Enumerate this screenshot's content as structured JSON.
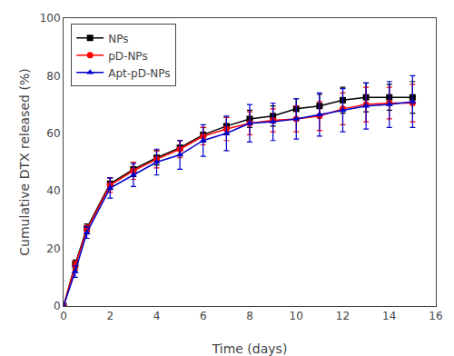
{
  "chart_data": {
    "type": "line",
    "xlabel": "Time (days)",
    "ylabel": "Cumulative DTX released (%)",
    "x": [
      0,
      0.5,
      1,
      2,
      3,
      4,
      5,
      6,
      7,
      8,
      9,
      10,
      11,
      12,
      13,
      14,
      15
    ],
    "series": [
      {
        "name": "NPs",
        "color": "#000000",
        "marker": "square",
        "values": [
          0,
          14.5,
          27.0,
          42.5,
          47.5,
          51.5,
          55.0,
          59.5,
          62.5,
          65.0,
          66.0,
          68.5,
          69.5,
          71.5,
          72.5,
          72.5,
          72.5
        ],
        "errors": [
          0,
          1.5,
          1.5,
          2.0,
          2.5,
          2.5,
          2.5,
          2.5,
          3.0,
          3.0,
          3.5,
          3.5,
          4.0,
          4.5,
          5.0,
          4.5,
          5.5
        ]
      },
      {
        "name": "pD-NPs",
        "color": "#ff0000",
        "marker": "circle",
        "values": [
          0,
          14.0,
          26.5,
          42.0,
          47.0,
          51.0,
          54.5,
          59.0,
          61.5,
          63.5,
          64.5,
          65.0,
          66.0,
          68.5,
          70.0,
          70.5,
          70.5
        ],
        "errors": [
          0,
          1.5,
          1.5,
          2.5,
          3.0,
          3.0,
          3.0,
          3.0,
          4.0,
          4.0,
          4.0,
          4.5,
          5.0,
          5.5,
          6.0,
          5.5,
          6.5
        ]
      },
      {
        "name": "Apt-pD-NPs",
        "color": "#0000cc",
        "marker": "triangle-up",
        "values": [
          0,
          12.0,
          25.5,
          41.0,
          45.5,
          50.0,
          52.5,
          57.5,
          60.0,
          63.5,
          64.0,
          65.0,
          66.5,
          68.0,
          69.5,
          70.0,
          71.0
        ],
        "errors": [
          0,
          2.0,
          2.0,
          3.5,
          4.0,
          4.5,
          5.0,
          5.5,
          6.0,
          6.5,
          6.5,
          7.0,
          7.5,
          7.5,
          8.0,
          8.0,
          9.0
        ]
      }
    ],
    "xlim": [
      0,
      16
    ],
    "ylim": [
      0,
      100
    ],
    "xticks": [
      0,
      2,
      4,
      6,
      8,
      10,
      12,
      14,
      16
    ],
    "yticks": [
      0,
      20,
      40,
      60,
      80,
      100
    ],
    "grid": false,
    "legend": "upper left"
  }
}
